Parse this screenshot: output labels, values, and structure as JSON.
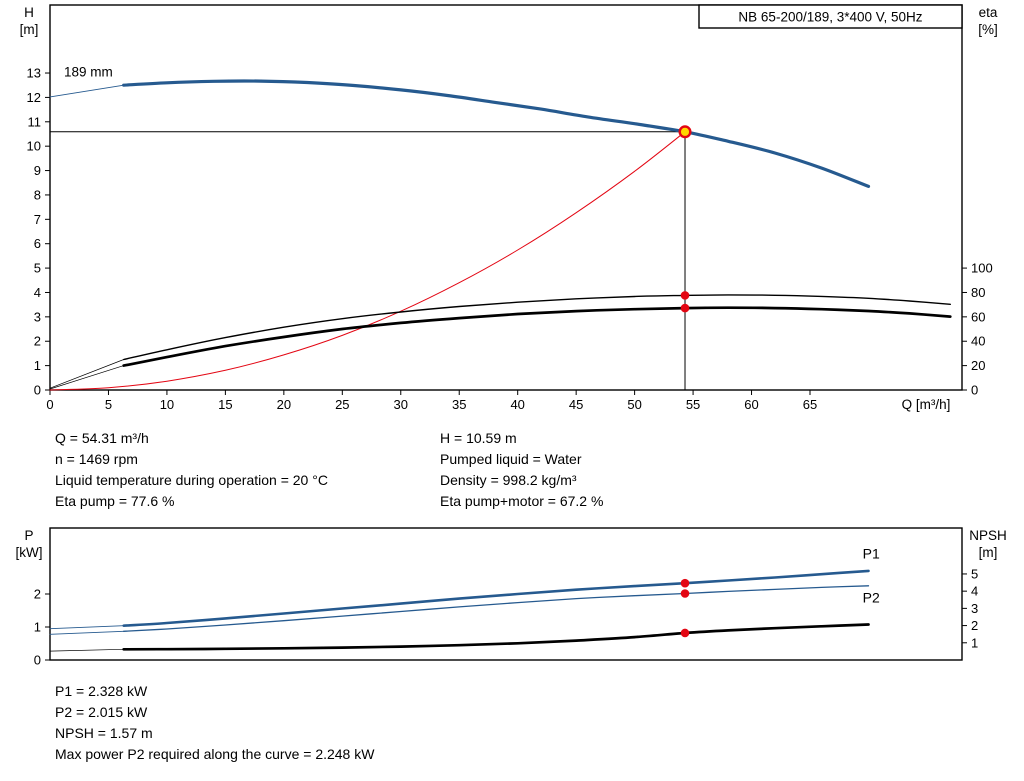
{
  "colors": {
    "curve_blue": "#265a8f",
    "curve_black": "#000000",
    "curve_red": "#e30613",
    "dot_red": "#e30613",
    "marker_fill": "#ffd800",
    "marker_ring": "#e30613"
  },
  "info_top": {
    "left": [
      "Q = 54.31 m³/h",
      "n = 1469 rpm",
      "Liquid temperature during operation = 20 °C",
      "Eta pump = 77.6 %"
    ],
    "right": [
      "H = 10.59 m",
      "Pumped liquid = Water",
      "Density = 998.2 kg/m³",
      "Eta pump+motor = 67.2 %"
    ]
  },
  "info_bottom": [
    "P1 = 2.328 kW",
    "P2 = 2.015 kW",
    "NPSH = 1.57 m",
    "Max power P2 required along the curve = 2.248 kW"
  ],
  "chart_data": [
    {
      "type": "line",
      "title_box": "NB 65-200/189, 3*400 V, 50Hz",
      "x_label": "Q [m³/h]",
      "corner_labels": {
        "left": [
          "H",
          "[m]"
        ],
        "right": [
          "eta",
          "[%]"
        ]
      },
      "x_range": [
        0,
        78
      ],
      "x_ticks": [
        0,
        5,
        10,
        15,
        20,
        25,
        30,
        35,
        40,
        45,
        50,
        55,
        60,
        65
      ],
      "axes": {
        "h": [
          0,
          15.79
        ],
        "eta": [
          0,
          315.8
        ]
      },
      "left_axis": "h",
      "left_ticks": [
        0,
        1,
        2,
        3,
        4,
        5,
        6,
        7,
        8,
        9,
        10,
        11,
        12,
        13
      ],
      "right_axis": "eta",
      "right_ticks": [
        0,
        20,
        40,
        60,
        80,
        100
      ],
      "guides": [
        {
          "type": "v",
          "q": 54.31,
          "axis": "h",
          "v1": 0,
          "v2": 10.59
        },
        {
          "type": "h",
          "axis": "h",
          "v": 10.59,
          "q1": 0,
          "q2": 54.31
        }
      ],
      "series": [
        {
          "name": "pump-curve-leader",
          "axis": "h",
          "color": "#265a8f",
          "width": 0.9,
          "smooth": false,
          "points": [
            [
              0,
              12.02
            ],
            [
              6.3,
              12.5
            ]
          ]
        },
        {
          "name": "eta-pump-leader",
          "axis": "eta",
          "color": "#000000",
          "width": 0.7,
          "smooth": false,
          "points": [
            [
              0,
              1.5
            ],
            [
              6.3,
              25
            ]
          ]
        },
        {
          "name": "eta-pump-motor-leader",
          "axis": "eta",
          "color": "#000000",
          "width": 0.7,
          "smooth": false,
          "points": [
            [
              0,
              0.8
            ],
            [
              6.3,
              20
            ]
          ]
        },
        {
          "name": "system-curve",
          "axis": "h",
          "color": "#e30613",
          "width": 1,
          "points": [
            [
              0,
              0
            ],
            [
              5,
              0.09
            ],
            [
              10,
              0.36
            ],
            [
              15,
              0.81
            ],
            [
              20,
              1.44
            ],
            [
              25,
              2.24
            ],
            [
              30,
              3.23
            ],
            [
              35,
              4.4
            ],
            [
              40,
              5.74
            ],
            [
              45,
              7.27
            ],
            [
              50,
              8.97
            ],
            [
              54.31,
              10.59
            ]
          ]
        },
        {
          "name": "eta-pump-curve",
          "axis": "eta",
          "color": "#000000",
          "width": 1.4,
          "points": [
            [
              6.3,
              25
            ],
            [
              10,
              33
            ],
            [
              15,
              43
            ],
            [
              20,
              51.5
            ],
            [
              25,
              58.5
            ],
            [
              30,
              64
            ],
            [
              35,
              68.5
            ],
            [
              40,
              72
            ],
            [
              45,
              74.8
            ],
            [
              50,
              76.7
            ],
            [
              54.31,
              77.6
            ],
            [
              58,
              78
            ],
            [
              62,
              77.7
            ],
            [
              66,
              76.8
            ],
            [
              70,
              75.2
            ],
            [
              73.5,
              73
            ],
            [
              77,
              70.3
            ]
          ]
        },
        {
          "name": "eta-pump-motor-curve",
          "axis": "eta",
          "color": "#000000",
          "width": 2.7,
          "points": [
            [
              6.3,
              20
            ],
            [
              10,
              27
            ],
            [
              15,
              36
            ],
            [
              20,
              43.5
            ],
            [
              25,
              50
            ],
            [
              30,
              55
            ],
            [
              35,
              59
            ],
            [
              40,
              62.3
            ],
            [
              45,
              64.7
            ],
            [
              50,
              66.3
            ],
            [
              54.31,
              67.2
            ],
            [
              58,
              67.5
            ],
            [
              62,
              67.2
            ],
            [
              66,
              66.3
            ],
            [
              70,
              64.8
            ],
            [
              73.5,
              62.8
            ],
            [
              77,
              60.2
            ]
          ]
        },
        {
          "name": "pump-curve-189mm",
          "axis": "h",
          "color": "#265a8f",
          "width": 3.2,
          "points": [
            [
              6.3,
              12.5
            ],
            [
              10,
              12.6
            ],
            [
              14,
              12.66
            ],
            [
              18,
              12.67
            ],
            [
              22,
              12.61
            ],
            [
              26,
              12.49
            ],
            [
              30,
              12.31
            ],
            [
              34,
              12.08
            ],
            [
              38,
              11.8
            ],
            [
              42,
              11.52
            ],
            [
              46,
              11.2
            ],
            [
              50,
              10.92
            ],
            [
              54.31,
              10.59
            ],
            [
              58,
              10.2
            ],
            [
              62,
              9.72
            ],
            [
              66,
              9.1
            ],
            [
              70,
              8.35
            ]
          ]
        }
      ],
      "dots": [
        {
          "q": 54.31,
          "v": 77.6,
          "axis": "eta",
          "color": "#e30613"
        },
        {
          "q": 54.31,
          "v": 67.2,
          "axis": "eta",
          "color": "#e30613"
        }
      ],
      "duty_point": {
        "q": 54.31,
        "v": 10.59,
        "axis": "h",
        "fill": "#ffd800",
        "ring": "#e30613"
      },
      "annotations": [
        {
          "name": "impeller-diameter-label",
          "text": "189 mm",
          "q": 1.2,
          "v": 12.85,
          "axis": "h",
          "anchor": "start",
          "size": 13.5
        }
      ]
    },
    {
      "type": "line",
      "x_label": "",
      "corner_labels": {
        "left": [
          "P",
          "[kW]"
        ],
        "right": [
          "NPSH",
          "[m]"
        ]
      },
      "x_range": [
        0,
        78
      ],
      "x_ticks": [],
      "axes": {
        "p": [
          0,
          4
        ],
        "npsh": [
          0,
          7.67
        ]
      },
      "left_axis": "p",
      "left_ticks": [
        0,
        1,
        2
      ],
      "right_axis": "npsh",
      "right_ticks": [
        1,
        2,
        3,
        4,
        5
      ],
      "guides": [],
      "series": [
        {
          "name": "p1-leader",
          "axis": "p",
          "color": "#265a8f",
          "width": 0.9,
          "smooth": false,
          "points": [
            [
              0,
              0.95
            ],
            [
              6.3,
              1.04
            ]
          ]
        },
        {
          "name": "p2-leader",
          "axis": "p",
          "color": "#265a8f",
          "width": 0.8,
          "smooth": false,
          "points": [
            [
              0,
              0.78
            ],
            [
              6.3,
              0.87
            ]
          ]
        },
        {
          "name": "npsh-leader",
          "axis": "npsh",
          "color": "#000000",
          "width": 0.7,
          "smooth": false,
          "points": [
            [
              0,
              0.52
            ],
            [
              6.3,
              0.62
            ]
          ]
        },
        {
          "name": "p2-curve",
          "axis": "p",
          "color": "#265a8f",
          "width": 1.3,
          "points": [
            [
              6.3,
              0.87
            ],
            [
              10,
              0.94
            ],
            [
              15,
              1.06
            ],
            [
              20,
              1.19
            ],
            [
              25,
              1.33
            ],
            [
              30,
              1.47
            ],
            [
              35,
              1.61
            ],
            [
              40,
              1.74
            ],
            [
              45,
              1.86
            ],
            [
              50,
              1.95
            ],
            [
              54.31,
              2.015
            ],
            [
              58,
              2.08
            ],
            [
              62,
              2.14
            ],
            [
              66,
              2.2
            ],
            [
              70,
              2.248
            ]
          ]
        },
        {
          "name": "p1-curve",
          "axis": "p",
          "color": "#265a8f",
          "width": 2.6,
          "points": [
            [
              6.3,
              1.04
            ],
            [
              10,
              1.12
            ],
            [
              15,
              1.26
            ],
            [
              20,
              1.41
            ],
            [
              25,
              1.56
            ],
            [
              30,
              1.71
            ],
            [
              35,
              1.86
            ],
            [
              40,
              2.0
            ],
            [
              45,
              2.13
            ],
            [
              50,
              2.24
            ],
            [
              54.31,
              2.328
            ],
            [
              58,
              2.41
            ],
            [
              62,
              2.5
            ],
            [
              66,
              2.6
            ],
            [
              70,
              2.7
            ]
          ]
        },
        {
          "name": "npsh-curve",
          "axis": "npsh",
          "color": "#000000",
          "width": 2.7,
          "points": [
            [
              6.3,
              0.62
            ],
            [
              10,
              0.63
            ],
            [
              15,
              0.65
            ],
            [
              20,
              0.68
            ],
            [
              25,
              0.72
            ],
            [
              30,
              0.78
            ],
            [
              35,
              0.86
            ],
            [
              40,
              0.97
            ],
            [
              45,
              1.13
            ],
            [
              50,
              1.33
            ],
            [
              54.31,
              1.57
            ],
            [
              58,
              1.72
            ],
            [
              62,
              1.85
            ],
            [
              66,
              1.96
            ],
            [
              70,
              2.06
            ]
          ]
        }
      ],
      "dots": [
        {
          "q": 54.31,
          "v": 2.328,
          "axis": "p",
          "color": "#e30613"
        },
        {
          "q": 54.31,
          "v": 2.015,
          "axis": "p",
          "color": "#e30613"
        },
        {
          "q": 54.31,
          "v": 1.57,
          "axis": "npsh",
          "color": "#e30613"
        }
      ],
      "annotations": [
        {
          "name": "p1-label",
          "text": "P1",
          "q": 69.5,
          "v": 3.08,
          "axis": "p",
          "color": "#265a8f",
          "size": 14,
          "anchor": "start"
        },
        {
          "name": "p2-label",
          "text": "P2",
          "q": 69.5,
          "v": 1.75,
          "axis": "p",
          "color": "#265a8f",
          "size": 14,
          "anchor": "start"
        }
      ]
    }
  ]
}
